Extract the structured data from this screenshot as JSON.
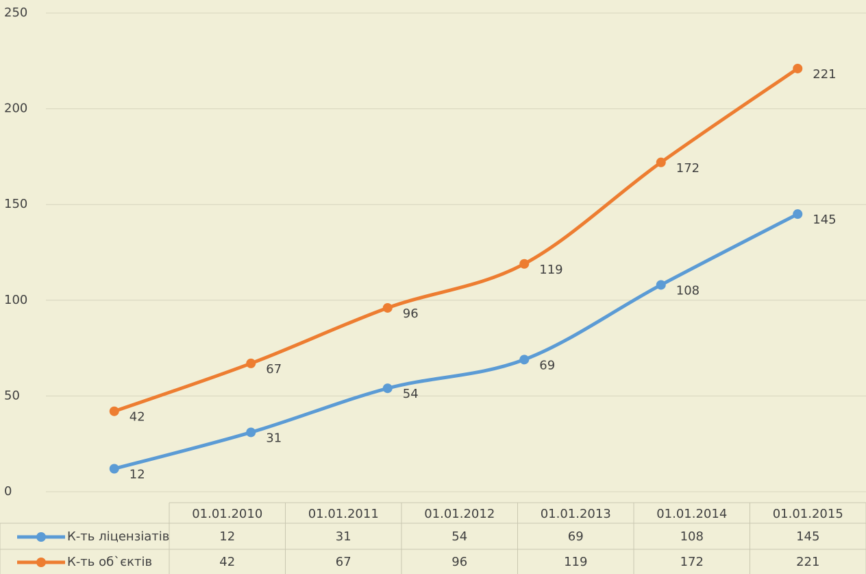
{
  "chart_data": {
    "type": "line",
    "categories": [
      "01.01.2010",
      "01.01.2011",
      "01.01.2012",
      "01.01.2013",
      "01.01.2014",
      "01.01.2015"
    ],
    "series": [
      {
        "name": "К-ть ліцензіатів",
        "color": "#5b9bd5",
        "values": [
          12,
          31,
          54,
          69,
          108,
          145
        ]
      },
      {
        "name": "К-ть об`єктів",
        "color": "#ed7d31",
        "values": [
          42,
          67,
          96,
          119,
          172,
          221
        ]
      }
    ],
    "ylim": [
      0,
      250
    ],
    "yticks": [
      0,
      50,
      100,
      150,
      200,
      250
    ],
    "grid": true,
    "smooth": true,
    "data_table": true
  }
}
